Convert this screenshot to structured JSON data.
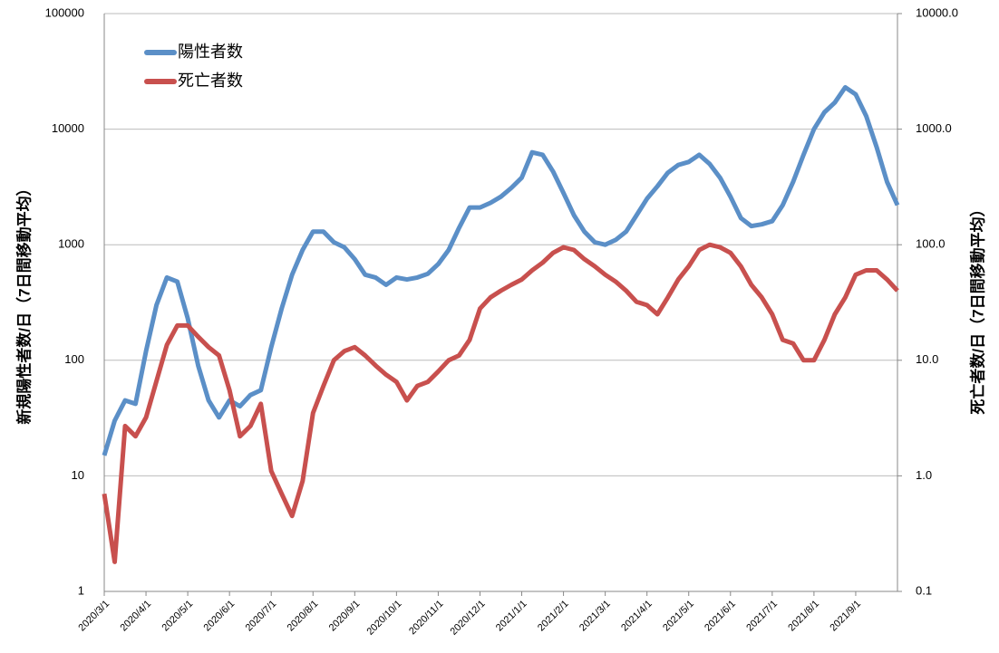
{
  "chart_data": {
    "type": "line",
    "ylabel": "新規陽性者数/日（7日間移動平均）",
    "y2label": "死亡者数/日（7日間移動平均）",
    "log": true,
    "grid": true,
    "legend": "upper left",
    "categories": [
      "2020/3/1",
      null,
      null,
      null,
      "2020/4/1",
      null,
      null,
      null,
      "2020/5/1",
      null,
      null,
      null,
      "2020/6/1",
      null,
      null,
      null,
      "2020/7/1",
      null,
      null,
      null,
      "2020/8/1",
      null,
      null,
      null,
      "2020/9/1",
      null,
      null,
      null,
      "2020/10/1",
      null,
      null,
      null,
      "2020/11/1",
      null,
      null,
      null,
      "2020/12/1",
      null,
      null,
      null,
      "2021/1/1",
      null,
      null,
      null,
      "2021/2/1",
      null,
      null,
      null,
      "2021/3/1",
      null,
      null,
      null,
      "2021/4/1",
      null,
      null,
      null,
      "2021/5/1",
      null,
      null,
      null,
      "2021/6/1",
      null,
      null,
      null,
      "2021/7/1",
      null,
      null,
      null,
      "2021/8/1",
      null,
      null,
      null,
      "2021/9/1",
      null,
      null,
      null,
      null
    ],
    "ylim": [
      1,
      100000
    ],
    "yticks": [
      1,
      10,
      100,
      1000,
      10000,
      100000
    ],
    "y2lim": [
      0.1,
      10000
    ],
    "y2ticks": [
      0.1,
      {
        "value": 1,
        "label": "1.0"
      },
      {
        "value": 10,
        "label": "10.0"
      },
      {
        "value": 100,
        "label": "100.0"
      },
      {
        "value": 1000,
        "label": "1000.0"
      },
      {
        "value": 10000,
        "label": "10000.0"
      }
    ],
    "series": [
      {
        "name": "陽性者数",
        "color": "#5b8fc7",
        "values": [
          15,
          30,
          45,
          42,
          120,
          300,
          520,
          480,
          230,
          90,
          45,
          32,
          45,
          40,
          50,
          55,
          130,
          280,
          550,
          900,
          1300,
          1300,
          1050,
          950,
          750,
          550,
          520,
          450,
          520,
          500,
          520,
          560,
          680,
          900,
          1400,
          2100,
          2100,
          2300,
          2600,
          3100,
          3800,
          6300,
          6000,
          4300,
          2800,
          1800,
          1300,
          1050,
          1000,
          1100,
          1300,
          1800,
          2500,
          3200,
          4200,
          4900,
          5200,
          6000,
          5000,
          3800,
          2600,
          1700,
          1450,
          1500,
          1600,
          2200,
          3500,
          6000,
          10000,
          14000,
          17000,
          23000,
          20000,
          13000,
          7000,
          3500,
          2200
        ]
      },
      {
        "name": "死亡者数",
        "color": "#c8504e",
        "axis": "y2",
        "values": [
          0.7,
          0.18,
          2.7,
          2.2,
          3.2,
          6.6,
          13.6,
          20,
          20,
          16,
          13,
          11,
          5.5,
          2.2,
          2.7,
          4.2,
          1.1,
          0.7,
          0.45,
          0.9,
          3.5,
          6,
          10,
          12,
          13,
          11,
          9,
          7.5,
          6.5,
          4.5,
          6,
          6.5,
          8,
          10,
          11,
          15,
          28,
          35,
          40,
          45,
          50,
          60,
          70,
          85,
          95,
          90,
          75,
          65,
          55,
          48,
          40,
          32,
          30,
          25,
          35,
          50,
          65,
          90,
          100,
          95,
          85,
          65,
          45,
          35,
          25,
          15,
          14,
          10,
          10,
          15,
          25,
          35,
          55,
          60,
          60,
          50,
          40
        ]
      }
    ]
  }
}
